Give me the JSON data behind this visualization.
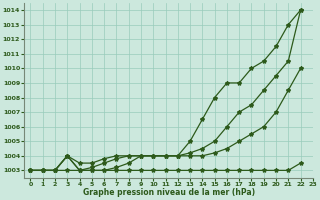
{
  "title": "Graphe pression niveau de la mer (hPa)",
  "bg_color": "#cce8dd",
  "grid_color": "#99ccbb",
  "line_color": "#2d5a1b",
  "xlim": [
    -0.5,
    23
  ],
  "ylim": [
    1002.5,
    1014.5
  ],
  "xticks": [
    0,
    1,
    2,
    3,
    4,
    5,
    6,
    7,
    8,
    9,
    10,
    11,
    12,
    13,
    14,
    15,
    16,
    17,
    18,
    19,
    20,
    21,
    22,
    23
  ],
  "yticks": [
    1003,
    1004,
    1005,
    1006,
    1007,
    1008,
    1009,
    1010,
    1011,
    1012,
    1013,
    1014
  ],
  "line1_x": [
    0,
    1,
    2,
    3,
    4,
    5,
    6,
    7,
    8,
    9,
    10,
    11,
    12,
    13,
    14,
    15,
    16,
    17,
    18,
    19,
    20,
    21,
    22
  ],
  "line1_y": [
    1003.0,
    1003.0,
    1003.0,
    1004.0,
    1003.0,
    1003.0,
    1003.0,
    1003.2,
    1003.5,
    1004.0,
    1004.0,
    1004.0,
    1004.0,
    1005.0,
    1006.5,
    1008.0,
    1009.0,
    1009.0,
    1010.0,
    1010.5,
    1011.5,
    1013.0,
    1014.0
  ],
  "line2_x": [
    0,
    1,
    2,
    3,
    4,
    5,
    6,
    7,
    8,
    9,
    10,
    11,
    12,
    13,
    14,
    15,
    16,
    17,
    18,
    19,
    20,
    21,
    22
  ],
  "line2_y": [
    1003.0,
    1003.0,
    1003.0,
    1003.0,
    1003.0,
    1003.2,
    1003.5,
    1003.8,
    1004.0,
    1004.0,
    1004.0,
    1004.0,
    1004.0,
    1004.2,
    1004.5,
    1005.0,
    1006.0,
    1007.0,
    1007.5,
    1008.5,
    1009.5,
    1010.5,
    1014.0
  ],
  "line3_x": [
    0,
    1,
    2,
    3,
    4,
    5,
    6,
    7,
    8,
    9,
    10,
    11,
    12,
    13,
    14,
    15,
    16,
    17,
    18,
    19,
    20,
    21,
    22
  ],
  "line3_y": [
    1003.0,
    1003.0,
    1003.0,
    1004.0,
    1003.0,
    1003.0,
    1003.0,
    1003.0,
    1003.0,
    1003.0,
    1003.0,
    1003.0,
    1003.0,
    1003.0,
    1003.0,
    1003.0,
    1003.0,
    1003.0,
    1003.0,
    1003.0,
    1003.0,
    1003.0,
    1003.5
  ],
  "line4_x": [
    0,
    1,
    2,
    3,
    4,
    5,
    6,
    7,
    8,
    9,
    10,
    11,
    12,
    13,
    14,
    15,
    16,
    17,
    18,
    19,
    20,
    21,
    22
  ],
  "line4_y": [
    1003.0,
    1003.0,
    1003.0,
    1004.0,
    1003.5,
    1003.5,
    1003.8,
    1004.0,
    1004.0,
    1004.0,
    1004.0,
    1004.0,
    1004.0,
    1004.0,
    1004.0,
    1004.2,
    1004.5,
    1005.0,
    1005.5,
    1006.0,
    1007.0,
    1008.5,
    1010.0
  ]
}
